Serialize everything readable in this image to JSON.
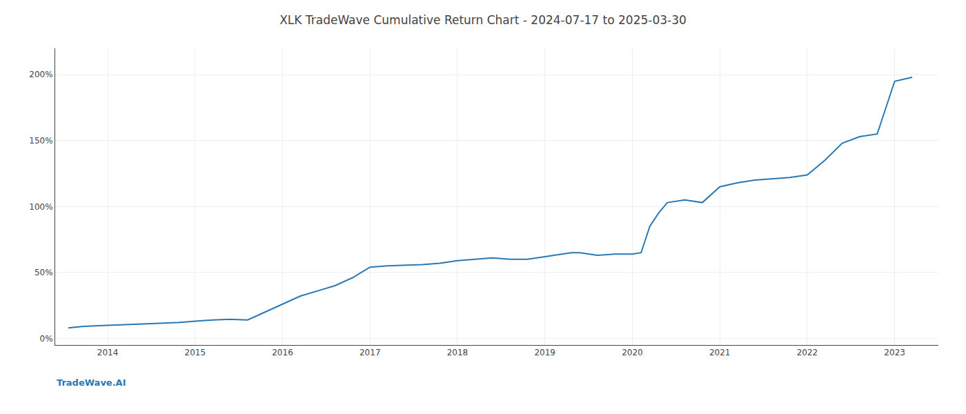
{
  "chart_data": {
    "type": "line",
    "title": "XLK TradeWave Cumulative Return Chart - 2024-07-17 to 2025-03-30",
    "annotations": [
      "TradeWave.AI"
    ],
    "color": "#2878b5",
    "x": [
      2013.55,
      2013.7,
      2013.85,
      2014.0,
      2014.2,
      2014.4,
      2014.6,
      2014.8,
      2015.0,
      2015.2,
      2015.4,
      2015.6,
      2015.8,
      2016.0,
      2016.2,
      2016.4,
      2016.6,
      2016.8,
      2017.0,
      2017.2,
      2017.4,
      2017.6,
      2017.8,
      2018.0,
      2018.2,
      2018.4,
      2018.6,
      2018.8,
      2019.0,
      2019.1,
      2019.2,
      2019.3,
      2019.4,
      2019.6,
      2019.8,
      2020.0,
      2020.1,
      2020.2,
      2020.3,
      2020.4,
      2020.6,
      2020.8,
      2021.0,
      2021.2,
      2021.4,
      2021.6,
      2021.8,
      2022.0,
      2022.2,
      2022.4,
      2022.6,
      2022.8,
      2023.0,
      2023.2
    ],
    "values": [
      8,
      9,
      9.5,
      10,
      10.5,
      11,
      11.5,
      12,
      13,
      14,
      14.5,
      14,
      20,
      26,
      32,
      36,
      40,
      46,
      54,
      55,
      55.5,
      56,
      57,
      59,
      60,
      61,
      60,
      60,
      62,
      63,
      64,
      65,
      65,
      63,
      64,
      64,
      65,
      85,
      95,
      103,
      105,
      103,
      115,
      118,
      120,
      121,
      122,
      124,
      135,
      148,
      153,
      155,
      195,
      198
    ],
    "xlim": [
      2013.4,
      2023.5
    ],
    "xticks": [
      2014,
      2015,
      2016,
      2017,
      2018,
      2019,
      2020,
      2021,
      2022,
      2023
    ],
    "ylim": [
      -5,
      220
    ],
    "yticks": [
      {
        "value": 0,
        "label": "0%"
      },
      {
        "value": 50,
        "label": "50%"
      },
      {
        "value": 100,
        "label": "100%"
      },
      {
        "value": 150,
        "label": "150%"
      },
      {
        "value": 200,
        "label": "200%"
      }
    ],
    "grid": true
  }
}
